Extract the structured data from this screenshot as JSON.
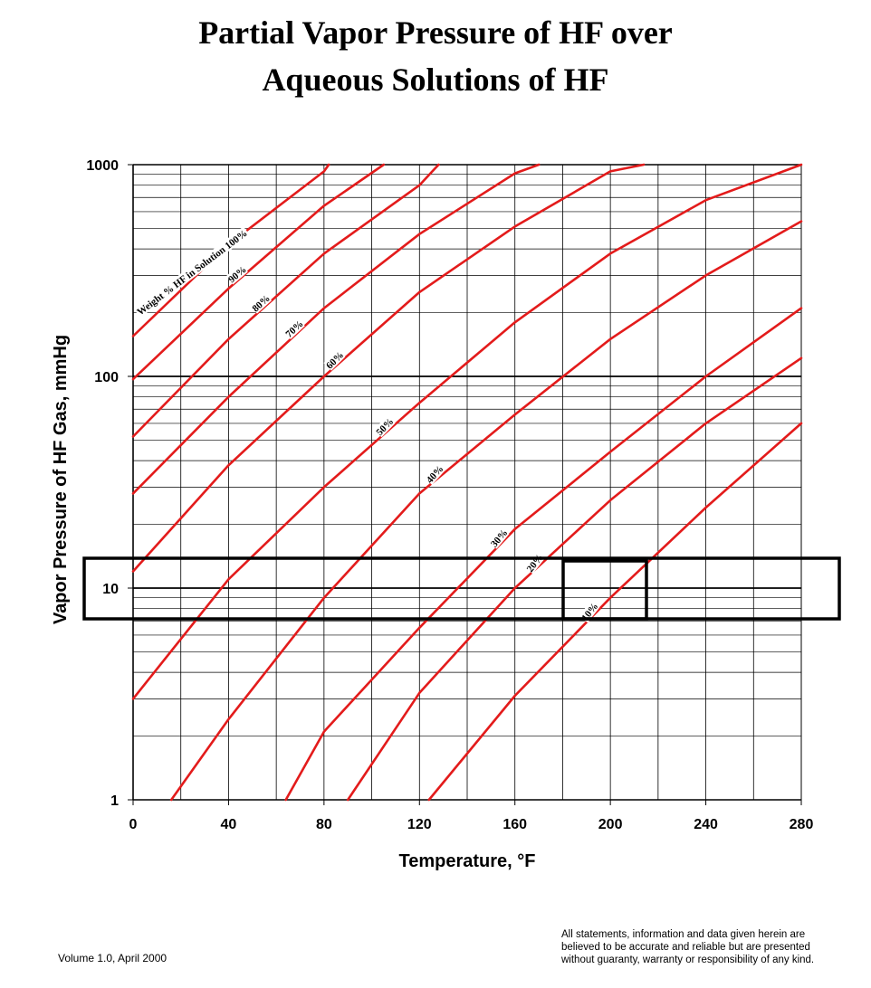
{
  "title_lines": [
    "Partial Vapor Pressure of HF over",
    "Aqueous Solutions of HF"
  ],
  "footer": {
    "volume": "Volume 1.0, April 2000",
    "disclaimer_lines": [
      "All statements, information and data given herein are",
      "believed to be accurate and reliable but are presented",
      "without guaranty, warranty or responsibility of any kind."
    ]
  },
  "colors": {
    "curve": "#e31b1b",
    "grid": "#000000",
    "box": "#000000"
  },
  "chart_data": {
    "type": "line",
    "title": "Partial Vapor Pressure of HF over Aqueous Solutions of HF",
    "xlabel": "Temperature, °F",
    "ylabel": "Vapor Pressure of HF Gas, mmHg",
    "xlim": [
      0,
      280
    ],
    "ylim": [
      1,
      1000
    ],
    "yscale": "log",
    "grid": true,
    "x_ticks": [
      0,
      40,
      80,
      120,
      160,
      200,
      240,
      280
    ],
    "y_ticks": [
      {
        "value": 1,
        "label": "1"
      },
      {
        "value": 10,
        "label": "10"
      },
      {
        "value": 100,
        "label": "100"
      },
      {
        "value": 1000,
        "label": "1000"
      }
    ],
    "series": [
      {
        "name": "Weight % HF in Solution 100%",
        "label_x": 26,
        "label_angle": -37,
        "points": [
          [
            0,
            155
          ],
          [
            40,
            420
          ],
          [
            80,
            930
          ],
          [
            82,
            1000
          ]
        ]
      },
      {
        "name": "90%",
        "label_x": 45,
        "label_angle": -40,
        "points": [
          [
            0,
            97
          ],
          [
            40,
            260
          ],
          [
            80,
            640
          ],
          [
            105,
            1000
          ]
        ]
      },
      {
        "name": "80%",
        "label_x": 55,
        "label_angle": -42,
        "points": [
          [
            0,
            52
          ],
          [
            40,
            150
          ],
          [
            80,
            380
          ],
          [
            120,
            800
          ],
          [
            128,
            1000
          ]
        ]
      },
      {
        "name": "70%",
        "label_x": 69,
        "label_angle": -43,
        "points": [
          [
            0,
            28
          ],
          [
            40,
            80
          ],
          [
            80,
            210
          ],
          [
            120,
            470
          ],
          [
            160,
            910
          ],
          [
            170,
            1000
          ]
        ]
      },
      {
        "name": "60%",
        "label_x": 86,
        "label_angle": -45,
        "points": [
          [
            0,
            12
          ],
          [
            40,
            38
          ],
          [
            80,
            100
          ],
          [
            120,
            250
          ],
          [
            160,
            510
          ],
          [
            200,
            930
          ],
          [
            214,
            1000
          ]
        ]
      },
      {
        "name": "50%",
        "label_x": 107,
        "label_angle": -46,
        "points": [
          [
            0,
            3
          ],
          [
            40,
            11
          ],
          [
            80,
            30
          ],
          [
            120,
            75
          ],
          [
            160,
            180
          ],
          [
            200,
            380
          ],
          [
            240,
            680
          ],
          [
            280,
            1000
          ]
        ]
      },
      {
        "name": "40%",
        "label_x": 128,
        "label_angle": -48,
        "points": [
          [
            16,
            1
          ],
          [
            40,
            2.4
          ],
          [
            80,
            9
          ],
          [
            120,
            28
          ],
          [
            160,
            66
          ],
          [
            200,
            150
          ],
          [
            240,
            300
          ],
          [
            280,
            540
          ]
        ]
      },
      {
        "name": "30%",
        "label_x": 155,
        "label_angle": -50,
        "points": [
          [
            64,
            1
          ],
          [
            80,
            2.1
          ],
          [
            120,
            6.5
          ],
          [
            160,
            19
          ],
          [
            200,
            44
          ],
          [
            240,
            100
          ],
          [
            280,
            210
          ]
        ]
      },
      {
        "name": "20%",
        "label_x": 170,
        "label_angle": -52,
        "points": [
          [
            90,
            1
          ],
          [
            120,
            3.2
          ],
          [
            160,
            10
          ],
          [
            200,
            26
          ],
          [
            240,
            60
          ],
          [
            280,
            122
          ]
        ]
      },
      {
        "name": "10%",
        "label_x": 193,
        "label_angle": -52,
        "points": [
          [
            124,
            1
          ],
          [
            160,
            3.1
          ],
          [
            200,
            9
          ],
          [
            240,
            24
          ],
          [
            280,
            60
          ]
        ]
      }
    ]
  }
}
